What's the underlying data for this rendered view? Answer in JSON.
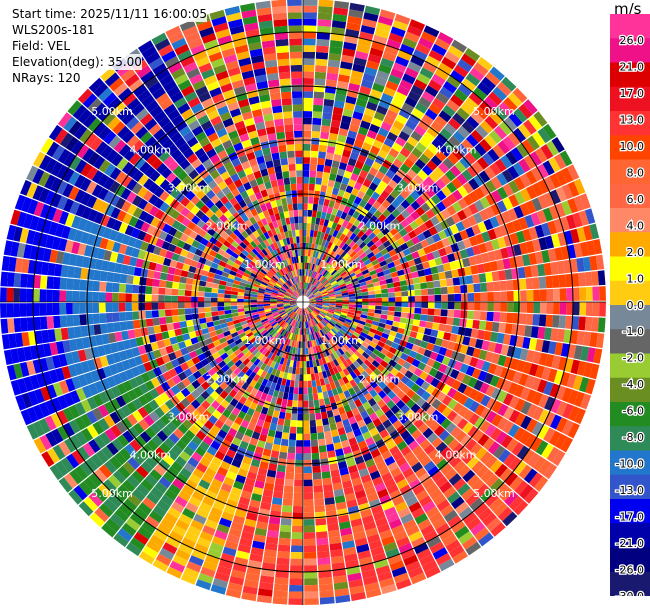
{
  "header": {
    "start_time": "Start time: 2025/11/11 16:00:05",
    "instrument": "WLS200s-181",
    "field": "Field: VEL",
    "elevation": "Elevation(deg): 35.00",
    "nrays": "NRays: 120"
  },
  "colorbar": {
    "unit": "m/s",
    "labels": [
      "26.0",
      "21.0",
      "17.0",
      "13.0",
      "10.0",
      "8.0",
      "6.0",
      "4.0",
      "2.0",
      "1.0",
      "0.0",
      "-1.0",
      "-2.0",
      "-4.0",
      "-6.0",
      "-8.0",
      "-10.0",
      "-13.0",
      "-17.0",
      "-21.0",
      "-26.0",
      "-30.0"
    ],
    "colors": [
      "#ff3399",
      "#ee1188",
      "#dd0000",
      "#ee1122",
      "#ff3333",
      "#ff4400",
      "#ff6633",
      "#ff6644",
      "#ff8866",
      "#ffaa00",
      "#ffff00",
      "#ffcc11",
      "#778899",
      "#666666",
      "#99cc33",
      "#6b8e23",
      "#228b22",
      "#2e8b57",
      "#2277cc",
      "#3355cc",
      "#0000ee",
      "#0000aa",
      "#000080",
      "#191970"
    ]
  },
  "chart_data": {
    "type": "heatmap",
    "subtype": "PPI polar plot",
    "field": "VEL",
    "units": "m/s",
    "elevation_deg": 35.0,
    "n_rays": 120,
    "range_rings_km": [
      1,
      2,
      3,
      4,
      5
    ],
    "ring_labels": [
      "1.00km",
      "2.00km",
      "3.00km",
      "4.00km",
      "5.00km"
    ],
    "color_range": [
      -30.0,
      26.0
    ],
    "grid": true
  }
}
